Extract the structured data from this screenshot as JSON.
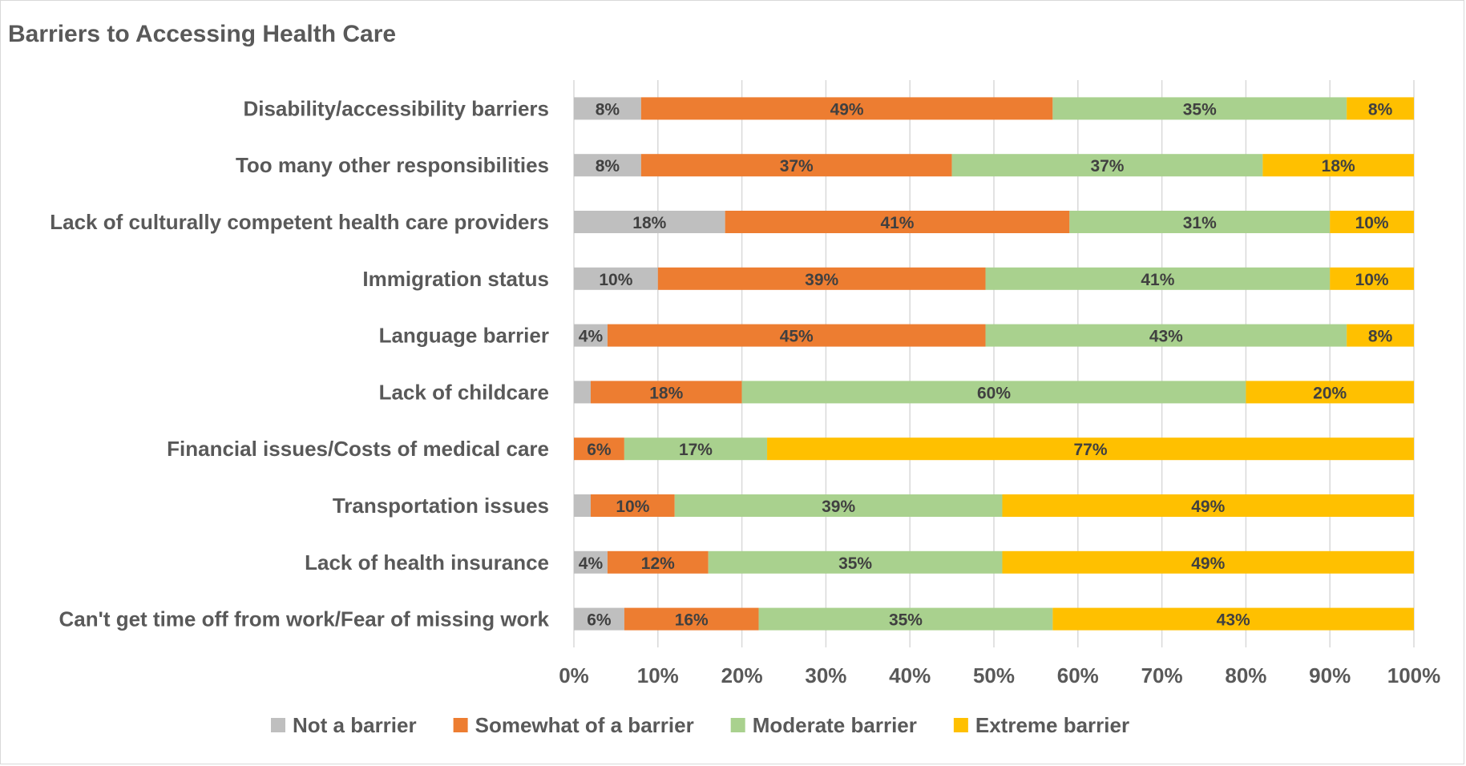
{
  "chart_data": {
    "type": "bar",
    "orientation": "horizontal",
    "stacked": "percent",
    "title": "Barriers to Accessing Health Care",
    "categories": [
      "Disability/accessibility barriers",
      "Too many other responsibilities",
      "Lack of culturally competent health care providers",
      "Immigration status",
      "Language barrier",
      "Lack of childcare",
      "Financial issues/Costs of medical care",
      "Transportation issues",
      "Lack of health insurance",
      "Can't get time off from work/Fear of missing work"
    ],
    "series": [
      {
        "name": "Not a barrier",
        "color": "#bfbfbf",
        "values": [
          8,
          8,
          18,
          10,
          4,
          2,
          0,
          2,
          4,
          6
        ],
        "labels": [
          "8%",
          "8%",
          "18%",
          "10%",
          "4%",
          "",
          "",
          "",
          "4%",
          "6%"
        ]
      },
      {
        "name": "Somewhat of a barrier",
        "color": "#ed7d31",
        "values": [
          49,
          37,
          41,
          39,
          45,
          18,
          6,
          10,
          12,
          16
        ],
        "labels": [
          "49%",
          "37%",
          "41%",
          "39%",
          "45%",
          "18%",
          "6%",
          "10%",
          "12%",
          "16%"
        ]
      },
      {
        "name": "Moderate barrier",
        "color": "#a9d18e",
        "values": [
          35,
          37,
          31,
          41,
          43,
          60,
          17,
          39,
          35,
          35
        ],
        "labels": [
          "35%",
          "37%",
          "31%",
          "41%",
          "43%",
          "60%",
          "17%",
          "39%",
          "35%",
          "35%"
        ]
      },
      {
        "name": "Extreme barrier",
        "color": "#ffc000",
        "values": [
          8,
          18,
          10,
          10,
          8,
          20,
          77,
          49,
          49,
          43
        ],
        "labels": [
          "8%",
          "18%",
          "10%",
          "10%",
          "8%",
          "20%",
          "77%",
          "49%",
          "49%",
          "43%"
        ]
      }
    ],
    "xlim": [
      0,
      100
    ],
    "xticks": [
      "0%",
      "10%",
      "20%",
      "30%",
      "40%",
      "50%",
      "60%",
      "70%",
      "80%",
      "90%",
      "100%"
    ],
    "grid": true,
    "legend_position": "bottom"
  }
}
